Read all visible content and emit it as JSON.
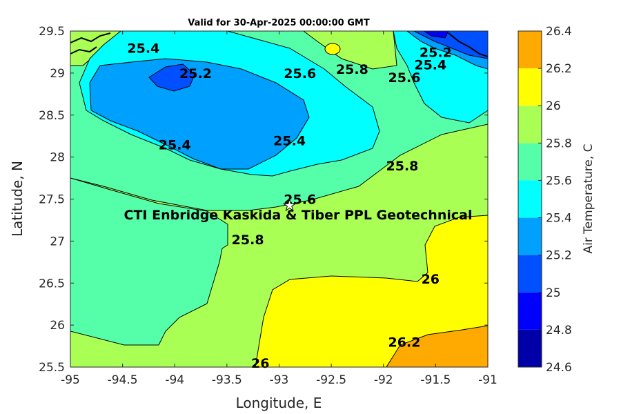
{
  "chart_data": {
    "type": "contour",
    "title": "Valid for 30-Apr-2025 00:00:00 GMT",
    "xlabel": "Longitude, E",
    "ylabel": "Latitude, N",
    "xlim": [
      -95,
      -91
    ],
    "ylim": [
      25.5,
      29.5
    ],
    "xticks": [
      "-95",
      "-94.5",
      "-94",
      "-93.5",
      "-93",
      "-92.5",
      "-92",
      "-91.5",
      "-91"
    ],
    "xtick_values": [
      -95,
      -94.5,
      -94,
      -93.5,
      -93,
      -92.5,
      -92,
      -91.5,
      -91
    ],
    "yticks": [
      "25.5",
      "26",
      "26.5",
      "27",
      "27.5",
      "28",
      "28.5",
      "29",
      "29.5"
    ],
    "ytick_values": [
      25.5,
      26,
      26.5,
      27,
      27.5,
      28,
      28.5,
      29,
      29.5
    ],
    "colorbar": {
      "label": "Air Temperature, C",
      "levels": [
        24.6,
        24.8,
        25,
        25.2,
        25.4,
        25.6,
        25.8,
        26,
        26.2,
        26.4
      ],
      "tick_labels": [
        "24.6",
        "24.8",
        "25",
        "25.2",
        "25.4",
        "25.6",
        "25.8",
        "26",
        "26.2",
        "26.4"
      ],
      "colors": [
        "#0000a8",
        "#0000ff",
        "#0050ff",
        "#00a0ff",
        "#00ffff",
        "#55ffaa",
        "#aaff55",
        "#ffff00",
        "#ffaa00",
        "#ff5500"
      ]
    },
    "contour_labels": [
      {
        "text": "25.4",
        "lon": -94.3,
        "lat": 29.3
      },
      {
        "text": "25.2",
        "lon": -93.8,
        "lat": 29.0
      },
      {
        "text": "25.6",
        "lon": -92.8,
        "lat": 29.0
      },
      {
        "text": "25.8",
        "lon": -92.3,
        "lat": 29.05
      },
      {
        "text": "25.6",
        "lon": -91.8,
        "lat": 28.95
      },
      {
        "text": "25.4",
        "lon": -91.55,
        "lat": 29.1
      },
      {
        "text": "25.2",
        "lon": -91.5,
        "lat": 29.25
      },
      {
        "text": "25.4",
        "lon": -94.0,
        "lat": 28.15
      },
      {
        "text": "25.4",
        "lon": -92.9,
        "lat": 28.2
      },
      {
        "text": "25.8",
        "lon": -91.82,
        "lat": 27.9
      },
      {
        "text": "25.6",
        "lon": -92.8,
        "lat": 27.5
      },
      {
        "text": "25.8",
        "lon": -93.3,
        "lat": 27.02
      },
      {
        "text": "26",
        "lon": -91.55,
        "lat": 26.55
      },
      {
        "text": "26",
        "lon": -93.18,
        "lat": 25.55
      },
      {
        "text": "26.2",
        "lon": -91.8,
        "lat": 25.8
      }
    ],
    "site": {
      "name": "CTI Enbridge  Kaskida & Tiber PPL Geotechnical",
      "lon": -92.9,
      "lat": 27.43
    },
    "grid": false
  }
}
